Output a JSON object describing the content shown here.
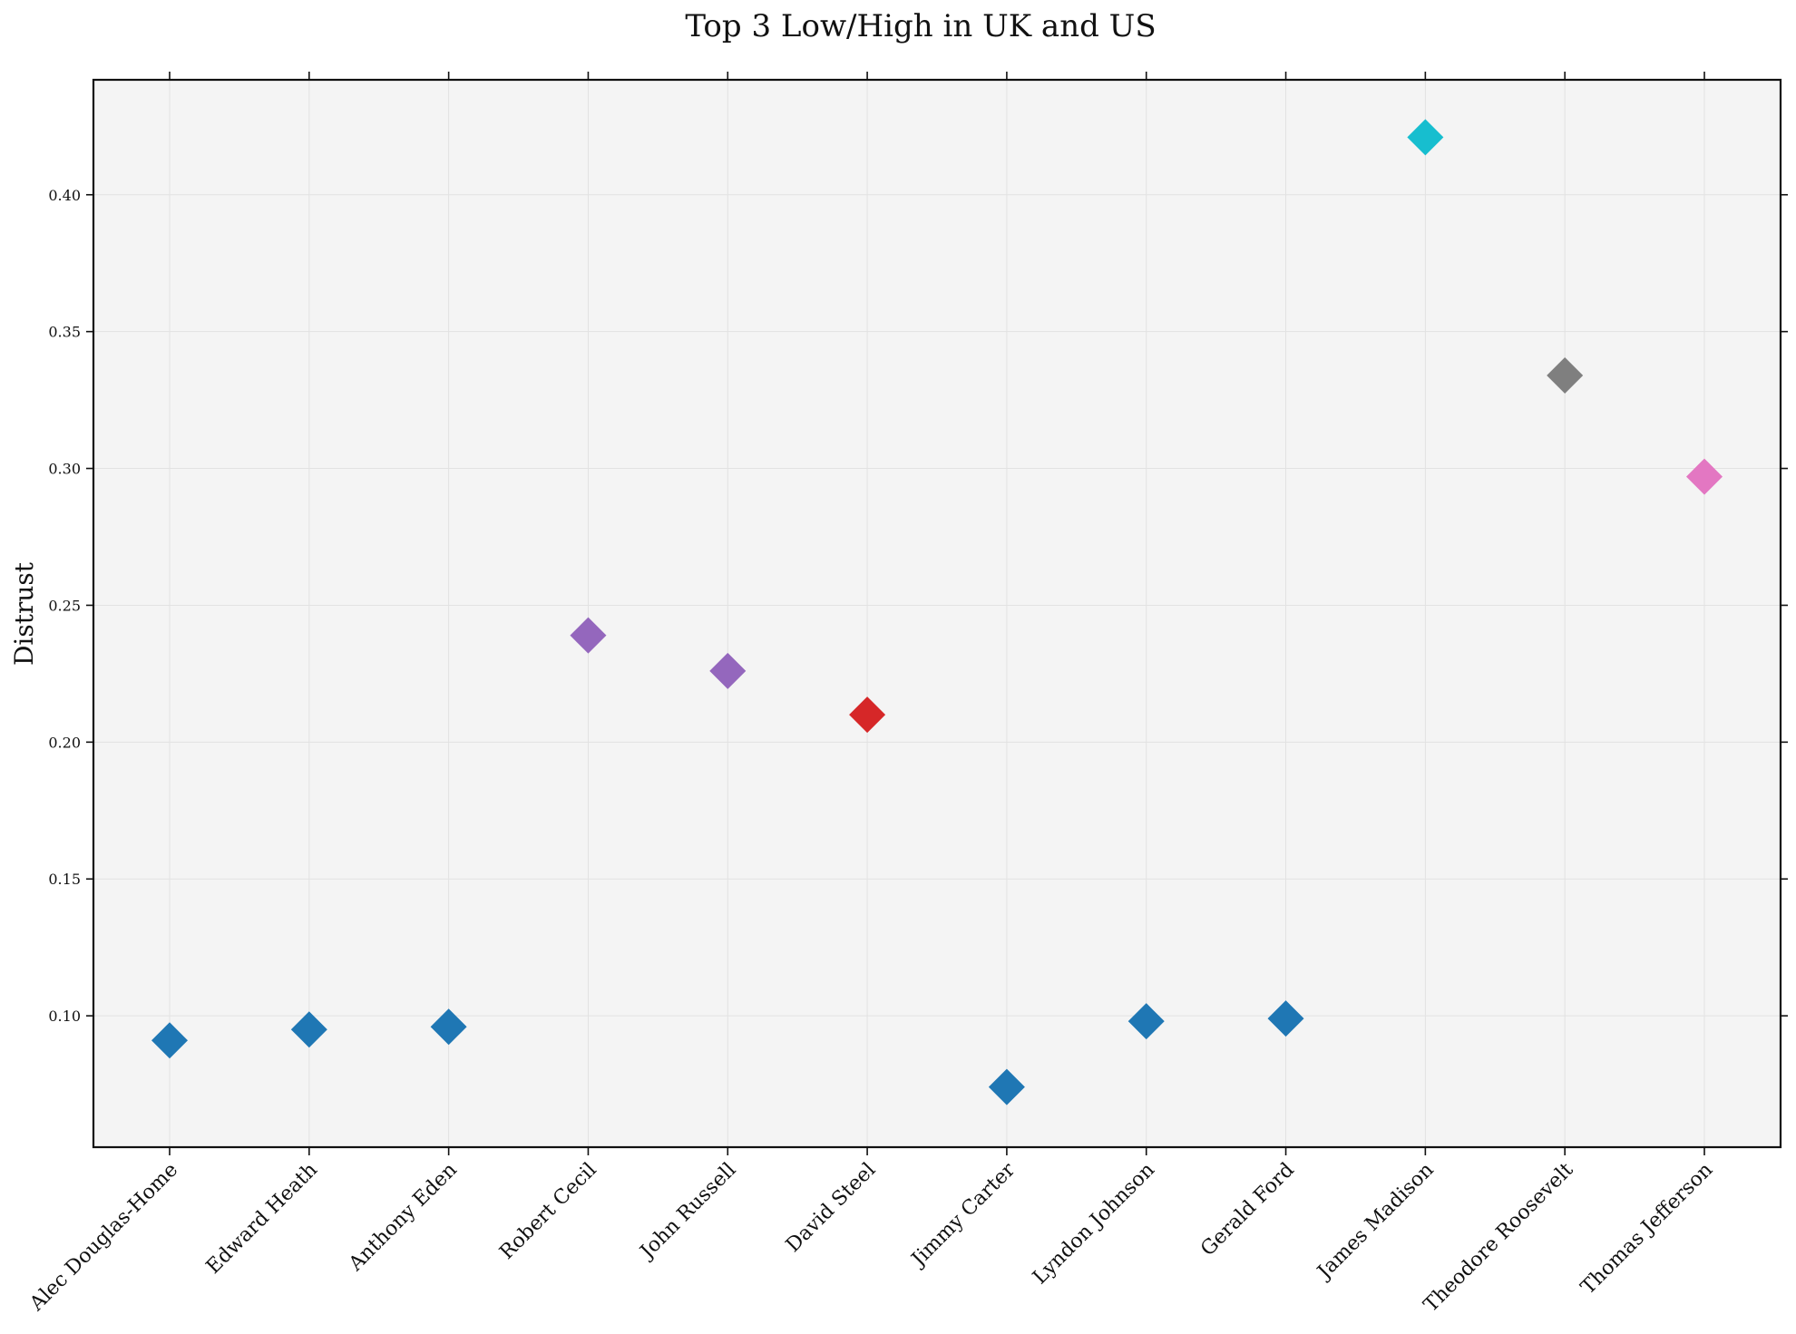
{
  "chart_data": {
    "type": "scatter",
    "title": "Top 3 Low/High in UK and US",
    "xlabel": "",
    "ylabel": "Distrust",
    "ylim": [
      0.052,
      0.442
    ],
    "yticks": [
      "0.10",
      "0.15",
      "0.20",
      "0.25",
      "0.30",
      "0.35",
      "0.40"
    ],
    "grid": true,
    "marker": "diamond",
    "categories": [
      "Alec Douglas-Home",
      "Edward Heath",
      "Anthony Eden",
      "Robert Cecil",
      "John Russell",
      "David Steel",
      "Jimmy Carter",
      "Lyndon Johnson",
      "Gerald Ford",
      "James Madison",
      "Theodore Roosevelt",
      "Thomas Jefferson"
    ],
    "values": [
      0.091,
      0.095,
      0.096,
      0.239,
      0.226,
      0.21,
      0.074,
      0.098,
      0.099,
      0.421,
      0.334,
      0.297
    ],
    "colors": [
      "#1f77b4",
      "#1f77b4",
      "#1f77b4",
      "#9467bd",
      "#9467bd",
      "#d62728",
      "#1f77b4",
      "#1f77b4",
      "#1f77b4",
      "#17becf",
      "#7f7f7f",
      "#e377c2"
    ]
  }
}
